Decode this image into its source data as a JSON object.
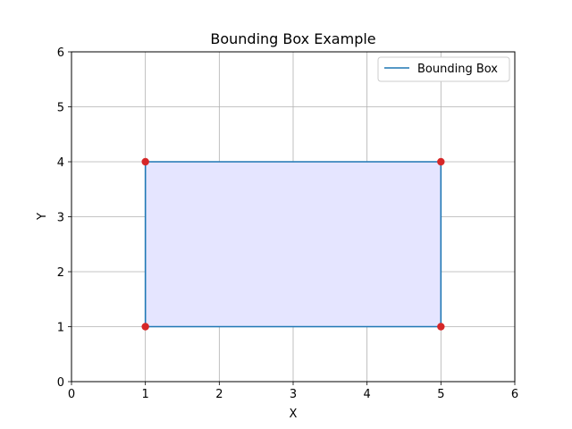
{
  "chart_data": {
    "type": "line",
    "title": "Bounding Box Example",
    "xlabel": "X",
    "ylabel": "Y",
    "xlim": [
      0,
      6
    ],
    "ylim": [
      0,
      6
    ],
    "xticks": [
      0,
      1,
      2,
      3,
      4,
      5,
      6
    ],
    "yticks": [
      0,
      1,
      2,
      3,
      4,
      5,
      6
    ],
    "grid": true,
    "legend_position": "top-right",
    "series": [
      {
        "name": "Bounding Box",
        "color": "#1f77b4",
        "x": [
          1,
          5,
          5,
          1,
          1
        ],
        "y": [
          1,
          1,
          4,
          4,
          1
        ],
        "fill": "#e5e5ff"
      }
    ],
    "points": {
      "color": "#d62728",
      "x": [
        1,
        5,
        5,
        1
      ],
      "y": [
        1,
        1,
        4,
        4
      ]
    }
  }
}
